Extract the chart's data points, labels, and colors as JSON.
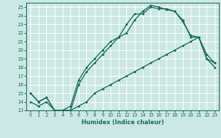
{
  "title": "",
  "xlabel": "Humidex (Indice chaleur)",
  "bg_color": "#cce8e4",
  "line_color": "#1a6b5a",
  "grid_color": "#ffffff",
  "xlim": [
    -0.5,
    23.5
  ],
  "ylim": [
    13,
    25.5
  ],
  "xticks": [
    0,
    1,
    2,
    3,
    4,
    5,
    6,
    7,
    8,
    9,
    10,
    11,
    12,
    13,
    14,
    15,
    16,
    17,
    18,
    19,
    20,
    21,
    22,
    23
  ],
  "yticks": [
    13,
    14,
    15,
    16,
    17,
    18,
    19,
    20,
    21,
    22,
    23,
    24,
    25
  ],
  "c1_x": [
    0,
    1,
    2,
    3,
    4,
    5,
    6,
    7,
    8,
    9,
    10,
    11,
    12,
    13,
    14,
    15,
    16,
    17,
    18,
    19,
    20,
    21,
    22,
    23
  ],
  "c1_y": [
    15,
    14,
    14.5,
    13,
    13,
    13,
    16,
    17.5,
    18.5,
    19.5,
    20.5,
    21.5,
    23,
    24.2,
    24.2,
    25,
    24.8,
    24.8,
    24.5,
    23.5,
    21.5,
    21.5,
    19,
    18
  ],
  "c2_x": [
    0,
    1,
    2,
    3,
    4,
    5,
    6,
    7,
    8,
    9,
    10,
    11,
    12,
    13,
    14,
    15,
    16,
    17,
    18,
    19,
    20,
    21,
    22,
    23
  ],
  "c2_y": [
    15,
    14,
    14.5,
    13,
    13,
    13.5,
    16.5,
    18,
    19,
    20,
    21,
    21.5,
    22,
    23.5,
    24.5,
    25.2,
    25.0,
    24.7,
    24.5,
    23.3,
    21.7,
    21.5,
    19.5,
    18.5
  ],
  "c3_x": [
    0,
    1,
    2,
    3,
    4,
    5,
    6,
    7,
    8,
    9,
    10,
    11,
    12,
    13,
    14,
    15,
    16,
    17,
    18,
    19,
    20,
    21,
    22,
    23
  ],
  "c3_y": [
    14,
    13.5,
    14,
    13,
    13,
    13,
    13.5,
    14,
    15,
    15.5,
    16,
    16.5,
    17,
    17.5,
    18,
    18.5,
    19,
    19.5,
    20,
    20.5,
    21,
    21.5,
    19,
    18.5
  ],
  "xlabel_fontsize": 6,
  "tick_fontsize": 5,
  "linewidth": 1.0,
  "markersize": 2.0
}
